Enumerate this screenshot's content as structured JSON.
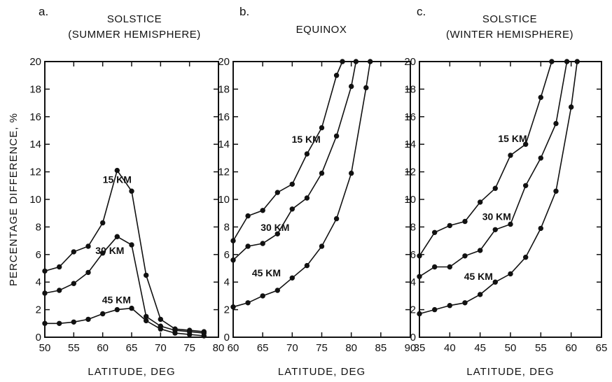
{
  "chart_data": [
    {
      "type": "line",
      "panel": "a.",
      "title": [
        "SOLSTICE",
        "(SUMMER HEMISPHERE)"
      ],
      "xlabel": "LATITUDE,  DEG",
      "ylabel": "PERCENTAGE  DIFFERENCE,  %",
      "xlim": [
        50,
        80
      ],
      "ylim": [
        0,
        20
      ],
      "xticks": [
        50,
        55,
        60,
        65,
        70,
        75,
        80
      ],
      "yticks": [
        0,
        2,
        4,
        6,
        8,
        10,
        12,
        14,
        16,
        18,
        20
      ],
      "grid": false,
      "series": [
        {
          "name": "15 KM",
          "x": [
            50,
            52.5,
            55,
            57.5,
            60,
            62.5,
            65,
            67.5,
            70,
            72.5,
            75,
            77.5
          ],
          "y": [
            4.8,
            5.1,
            6.2,
            6.6,
            8.3,
            12.1,
            10.6,
            4.5,
            1.3,
            0.6,
            0.5,
            0.4
          ]
        },
        {
          "name": "30 KM",
          "x": [
            50,
            52.5,
            55,
            57.5,
            60,
            62.5,
            65,
            67.5,
            70,
            72.5,
            75,
            77.5
          ],
          "y": [
            3.2,
            3.4,
            3.9,
            4.7,
            6.1,
            7.3,
            6.7,
            1.5,
            0.8,
            0.5,
            0.4,
            0.3
          ]
        },
        {
          "name": "45 KM",
          "x": [
            50,
            52.5,
            55,
            57.5,
            60,
            62.5,
            65,
            67.5,
            70,
            72.5,
            75,
            77.5
          ],
          "y": [
            1.0,
            1.0,
            1.1,
            1.3,
            1.7,
            2.0,
            2.1,
            1.2,
            0.6,
            0.3,
            0.2,
            0.1
          ]
        }
      ]
    },
    {
      "type": "line",
      "panel": "b.",
      "title": [
        "EQUINOX"
      ],
      "xlabel": "LATITUDE,  DEG",
      "xlim": [
        60,
        90
      ],
      "ylim": [
        0,
        20
      ],
      "xticks": [
        60,
        65,
        70,
        75,
        80,
        85,
        90
      ],
      "yticks": [
        0,
        2,
        4,
        6,
        8,
        10,
        12,
        14,
        16,
        18,
        20
      ],
      "grid": false,
      "series": [
        {
          "name": "15 KM",
          "x": [
            60,
            62.5,
            65,
            67.5,
            70,
            72.5,
            75,
            77.5,
            78.5
          ],
          "y": [
            7.0,
            8.8,
            9.2,
            10.5,
            11.1,
            13.3,
            15.2,
            19.0,
            20.0
          ]
        },
        {
          "name": "30 KM",
          "x": [
            60,
            62.5,
            65,
            67.5,
            70,
            72.5,
            75,
            77.5,
            80,
            80.8
          ],
          "y": [
            5.6,
            6.6,
            6.8,
            7.5,
            9.3,
            10.1,
            11.9,
            14.6,
            18.2,
            20.0
          ]
        },
        {
          "name": "45 KM",
          "x": [
            60,
            62.5,
            65,
            67.5,
            70,
            72.5,
            75,
            77.5,
            80,
            82.5,
            83.2
          ],
          "y": [
            2.2,
            2.5,
            3.0,
            3.4,
            4.3,
            5.2,
            6.6,
            8.6,
            11.9,
            18.1,
            20.0
          ]
        }
      ]
    },
    {
      "type": "line",
      "panel": "c.",
      "title": [
        "SOLSTICE",
        "(WINTER HEMISPHERE)"
      ],
      "xlabel": "LATITUDE,  DEG",
      "xlim": [
        35,
        65
      ],
      "ylim": [
        0,
        20
      ],
      "xticks": [
        35,
        40,
        45,
        50,
        55,
        60,
        65
      ],
      "yticks": [
        0,
        2,
        4,
        6,
        8,
        10,
        12,
        14,
        16,
        18,
        20
      ],
      "grid": false,
      "series": [
        {
          "name": "15 KM",
          "x": [
            35,
            37.5,
            40,
            42.5,
            45,
            47.5,
            50,
            52.5,
            55,
            56.8
          ],
          "y": [
            5.9,
            7.6,
            8.1,
            8.4,
            9.8,
            10.8,
            13.2,
            14.0,
            17.4,
            20.0
          ]
        },
        {
          "name": "30 KM",
          "x": [
            35,
            37.5,
            40,
            42.5,
            45,
            47.5,
            50,
            52.5,
            55,
            57.5,
            59.3
          ],
          "y": [
            4.4,
            5.1,
            5.1,
            5.9,
            6.3,
            7.8,
            8.2,
            11.0,
            13.0,
            15.5,
            20.0
          ]
        },
        {
          "name": "45 KM",
          "x": [
            35,
            37.5,
            40,
            42.5,
            45,
            47.5,
            50,
            52.5,
            55,
            57.5,
            60,
            61.0
          ],
          "y": [
            1.7,
            2.0,
            2.3,
            2.5,
            3.1,
            4.0,
            4.6,
            5.8,
            7.9,
            10.6,
            16.7,
            20.0
          ]
        }
      ]
    }
  ]
}
